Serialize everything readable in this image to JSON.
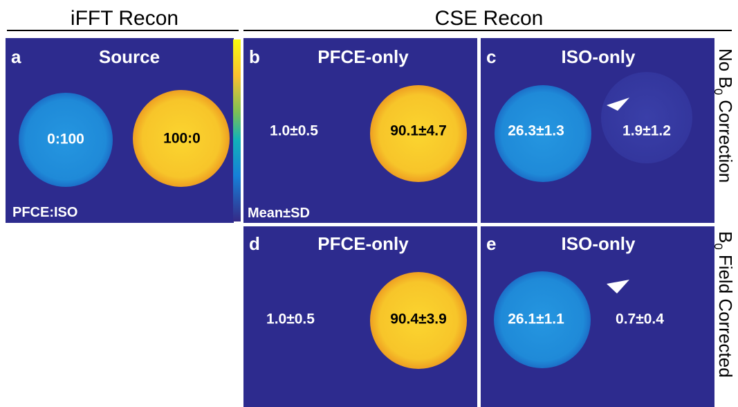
{
  "headers": [
    {
      "text": "iFFT Recon"
    },
    {
      "text": "CSE Recon"
    }
  ],
  "panels": [
    {
      "letter": "a",
      "title": "Source",
      "values": [
        "0:100",
        "100:0"
      ],
      "note": "PFCE:ISO"
    },
    {
      "letter": "b",
      "title": "PFCE-only",
      "values": [
        "1.0±0.5",
        "90.1±4.7"
      ],
      "note": "Mean±SD"
    },
    {
      "letter": "c",
      "title": "ISO-only",
      "values": [
        "26.3±1.3",
        "1.9±1.2"
      ]
    },
    {
      "letter": "d",
      "title": "PFCE-only",
      "values": [
        "1.0±0.5",
        "90.4±3.9"
      ]
    },
    {
      "letter": "e",
      "title": "ISO-only",
      "values": [
        "26.1±1.1",
        "0.7±0.4"
      ]
    }
  ],
  "row_labels": [
    {
      "pre": "No B",
      "sub": "0",
      "post": "Correction"
    },
    {
      "pre": "B",
      "sub": "0",
      "post": "Field Corrected"
    }
  ]
}
